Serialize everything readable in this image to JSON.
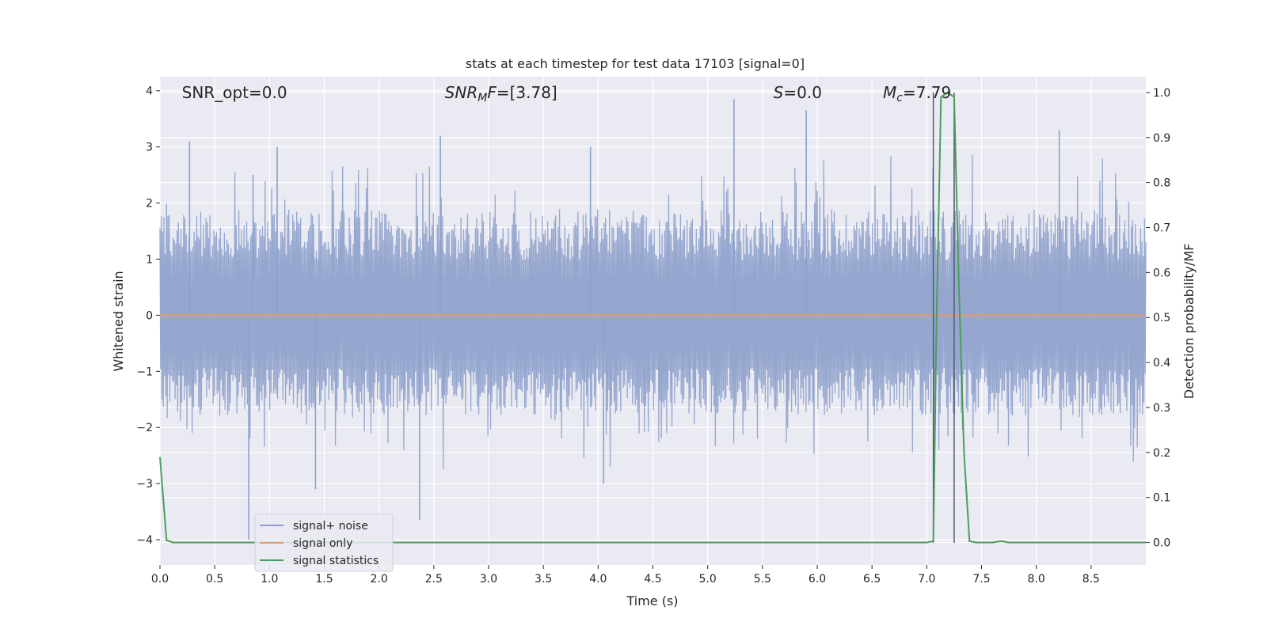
{
  "chart_data": {
    "type": "line",
    "title": "stats at each timestep for test data 17103 [signal=0]",
    "xlabel": "Time (s)",
    "ylabel": "Whitened strain",
    "y2label": "Detection probability/MF",
    "xlim": [
      0,
      9.0
    ],
    "ylim": [
      -4.45,
      4.25
    ],
    "y2lim": [
      -0.05,
      1.035
    ],
    "xticks": [
      0.0,
      0.5,
      1.0,
      1.5,
      2.0,
      2.5,
      3.0,
      3.5,
      4.0,
      4.5,
      5.0,
      5.5,
      6.0,
      6.5,
      7.0,
      7.5,
      8.0,
      8.5
    ],
    "xtick_labels": [
      "0.0",
      "0.5",
      "1.0",
      "1.5",
      "2.0",
      "2.5",
      "3.0",
      "3.5",
      "4.0",
      "4.5",
      "5.0",
      "5.5",
      "6.0",
      "6.5",
      "7.0",
      "7.5",
      "8.0",
      "8.5"
    ],
    "yticks": [
      -4,
      -3,
      -2,
      -1,
      0,
      1,
      2,
      3,
      4
    ],
    "ytick_labels": [
      "−4",
      "−3",
      "−2",
      "−1",
      "0",
      "1",
      "2",
      "3",
      "4"
    ],
    "y2ticks": [
      0.0,
      0.1,
      0.2,
      0.3,
      0.4,
      0.5,
      0.6,
      0.7,
      0.8,
      0.9,
      1.0
    ],
    "y2tick_labels": [
      "0.0",
      "0.1",
      "0.2",
      "0.3",
      "0.4",
      "0.5",
      "0.6",
      "0.7",
      "0.8",
      "0.9",
      "1.0"
    ],
    "grid": true,
    "legend_position": "lower-left",
    "annotations": [
      {
        "text": "SNR_opt=0.0",
        "x": 0.2
      },
      {
        "text": "SNR_MF=[3.78]",
        "x": 2.6
      },
      {
        "text": "S=0.0",
        "x": 5.6
      },
      {
        "text": "M_c=7.79",
        "x": 6.6
      }
    ],
    "vlines": [
      7.06,
      7.25
    ],
    "series": [
      {
        "name": "signal+ noise",
        "color": "#8da0cb",
        "kind": "noise",
        "envelope": {
          "upper_typical": 1.8,
          "lower_typical": -1.7
        },
        "peaks": [
          [
            0.27,
            3.1
          ],
          [
            0.81,
            -4.0
          ],
          [
            0.85,
            2.5
          ],
          [
            1.07,
            3.0
          ],
          [
            1.42,
            -3.1
          ],
          [
            2.37,
            -3.65
          ],
          [
            2.56,
            3.2
          ],
          [
            3.93,
            3.0
          ],
          [
            4.05,
            -3.0
          ],
          [
            5.24,
            3.85
          ],
          [
            5.9,
            3.65
          ],
          [
            7.25,
            2.9
          ],
          [
            8.21,
            3.3
          ],
          [
            7.07,
            -2.9
          ]
        ]
      },
      {
        "name": "signal only",
        "color": "#e59866",
        "x": [
          0.0,
          9.0
        ],
        "y": [
          0.0,
          0.0
        ]
      },
      {
        "name": "signal statistics",
        "color": "#4a9e5c",
        "axis": "right",
        "x": [
          0.0,
          0.06,
          0.12,
          7.0,
          7.06,
          7.09,
          7.13,
          7.19,
          7.25,
          7.29,
          7.34,
          7.39,
          7.45,
          7.6,
          7.68,
          7.75,
          9.0
        ],
        "y": [
          0.19,
          0.005,
          0.0,
          0.0,
          0.003,
          0.5,
          0.99,
          1.0,
          0.99,
          0.6,
          0.2,
          0.003,
          0.0,
          0.0,
          0.003,
          0.0,
          0.0
        ]
      }
    ]
  }
}
